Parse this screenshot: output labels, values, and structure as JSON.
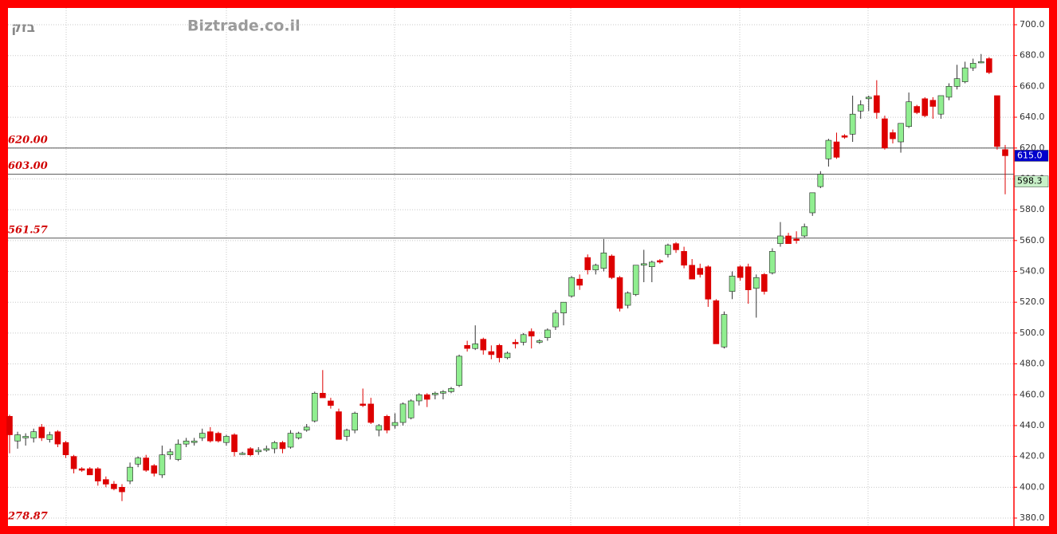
{
  "chart_data": {
    "type": "candlestick",
    "title": "Biztrade.co.il",
    "symbol": "בזק",
    "ylim": [
      380,
      700
    ],
    "yticks": [
      {
        "value": 380,
        "label": "380.0"
      },
      {
        "value": 400,
        "label": "400.0"
      },
      {
        "value": 420,
        "label": "420.0"
      },
      {
        "value": 440,
        "label": "440.0"
      },
      {
        "value": 460,
        "label": "460.0"
      },
      {
        "value": 480,
        "label": "480.0"
      },
      {
        "value": 500,
        "label": "500.0"
      },
      {
        "value": 520,
        "label": "520.0"
      },
      {
        "value": 540,
        "label": "540.0"
      },
      {
        "value": 560,
        "label": "560.0"
      },
      {
        "value": 580,
        "label": "580.0"
      },
      {
        "value": 600,
        "label": "600.0"
      },
      {
        "value": 620,
        "label": "620.0"
      },
      {
        "value": 640,
        "label": "640.0"
      },
      {
        "value": 660,
        "label": "660.0"
      },
      {
        "value": 680,
        "label": "680.0"
      },
      {
        "value": 700,
        "label": "700.0"
      }
    ],
    "grid": true,
    "up_color": "#90ee90",
    "down_color": "#dd0000",
    "levels": [
      {
        "value": 620,
        "label": "620.00"
      },
      {
        "value": 603,
        "label": "603.00"
      },
      {
        "value": 561.57,
        "label": "561.57"
      }
    ],
    "annotation": "278.87",
    "last_price": {
      "value": 615.0,
      "label": "615.0"
    },
    "marker_price": {
      "value": 598.3,
      "label": "598.3"
    },
    "open": [
      446,
      430,
      432,
      432,
      439,
      431,
      436,
      429,
      420,
      412,
      412,
      412,
      405,
      402,
      400,
      404,
      415,
      419,
      414,
      408,
      421,
      418,
      428,
      429,
      432,
      436,
      435,
      429,
      434,
      422,
      425,
      423,
      424,
      425,
      429,
      426,
      432,
      437,
      443,
      461,
      456,
      449,
      433,
      437,
      454,
      454,
      437,
      446,
      440,
      442,
      445,
      456,
      460,
      460,
      461,
      462,
      466,
      492,
      490,
      496,
      488,
      492,
      484,
      494,
      494,
      501,
      494,
      497,
      504,
      513,
      524,
      535,
      549,
      541,
      542,
      550,
      536,
      518,
      525,
      544,
      543,
      547,
      551,
      558,
      553,
      544,
      542,
      543,
      521,
      491,
      527,
      543,
      543,
      529,
      538,
      539,
      558,
      563,
      561,
      563,
      578,
      595,
      613,
      624,
      628,
      629,
      644,
      652,
      654,
      639,
      630,
      624,
      634,
      647,
      652,
      651,
      642,
      653,
      660,
      663,
      672,
      676,
      678,
      654,
      619
    ],
    "high": [
      447,
      436,
      435,
      438,
      441,
      436,
      437,
      430,
      421,
      413,
      413,
      413,
      407,
      404,
      402,
      416,
      420,
      421,
      415,
      427,
      425,
      431,
      432,
      432,
      438,
      439,
      436,
      434,
      435,
      423,
      426,
      426,
      427,
      430,
      430,
      437,
      436,
      441,
      462,
      476,
      458,
      451,
      438,
      449,
      464,
      458,
      441,
      447,
      448,
      455,
      457,
      461,
      461,
      462,
      463,
      465,
      486,
      495,
      505,
      497,
      492,
      493,
      488,
      496,
      500,
      503,
      496,
      503,
      515,
      520,
      537,
      538,
      551,
      545,
      561,
      551,
      537,
      527,
      544,
      554,
      547,
      548,
      558,
      559,
      556,
      548,
      545,
      544,
      522,
      514,
      540,
      544,
      545,
      538,
      539,
      555,
      572,
      565,
      566,
      571,
      591,
      605,
      626,
      630,
      629,
      654,
      651,
      654,
      664,
      641,
      632,
      636,
      656,
      648,
      653,
      653,
      654,
      662,
      674,
      676,
      678,
      681,
      679,
      654,
      622
    ],
    "low": [
      422,
      425,
      427,
      429,
      430,
      429,
      426,
      419,
      409,
      410,
      408,
      401,
      400,
      398,
      391,
      402,
      413,
      410,
      407,
      406,
      418,
      417,
      426,
      427,
      430,
      429,
      429,
      427,
      420,
      421,
      420,
      421,
      423,
      422,
      422,
      425,
      431,
      436,
      442,
      459,
      451,
      431,
      430,
      435,
      452,
      441,
      433,
      435,
      438,
      440,
      444,
      453,
      452,
      457,
      457,
      461,
      465,
      488,
      489,
      486,
      483,
      481,
      483,
      490,
      492,
      490,
      493,
      495,
      502,
      505,
      523,
      528,
      538,
      538,
      540,
      535,
      514,
      516,
      524,
      533,
      533,
      545,
      549,
      552,
      542,
      535,
      536,
      517,
      493,
      490,
      522,
      534,
      519,
      510,
      525,
      538,
      556,
      558,
      558,
      562,
      576,
      594,
      608,
      613,
      626,
      624,
      639,
      644,
      639,
      619,
      623,
      617,
      633,
      642,
      640,
      639,
      639,
      651,
      658,
      662,
      670,
      675,
      668,
      619,
      590
    ],
    "close": [
      434,
      434,
      433,
      436,
      432,
      434,
      428,
      421,
      412,
      411,
      408,
      404,
      402,
      399,
      397,
      413,
      419,
      411,
      409,
      421,
      423,
      428,
      430,
      430,
      435,
      430,
      430,
      433,
      423,
      422,
      421,
      424,
      425,
      429,
      425,
      435,
      435,
      439,
      461,
      458,
      453,
      431,
      437,
      448,
      453,
      442,
      440,
      437,
      442,
      454,
      456,
      460,
      457,
      461,
      462,
      464,
      485,
      490,
      493,
      489,
      486,
      484,
      487,
      493,
      499,
      498,
      495,
      502,
      513,
      520,
      536,
      531,
      541,
      544,
      552,
      536,
      516,
      526,
      544,
      545,
      546,
      546,
      557,
      554,
      544,
      535,
      538,
      522,
      493,
      512,
      537,
      536,
      528,
      536,
      527,
      553,
      563,
      558,
      560,
      569,
      591,
      603,
      625,
      614,
      627,
      642,
      648,
      653,
      643,
      620,
      626,
      636,
      650,
      643,
      641,
      647,
      654,
      660,
      665,
      672,
      675,
      676,
      669,
      621,
      615
    ]
  }
}
